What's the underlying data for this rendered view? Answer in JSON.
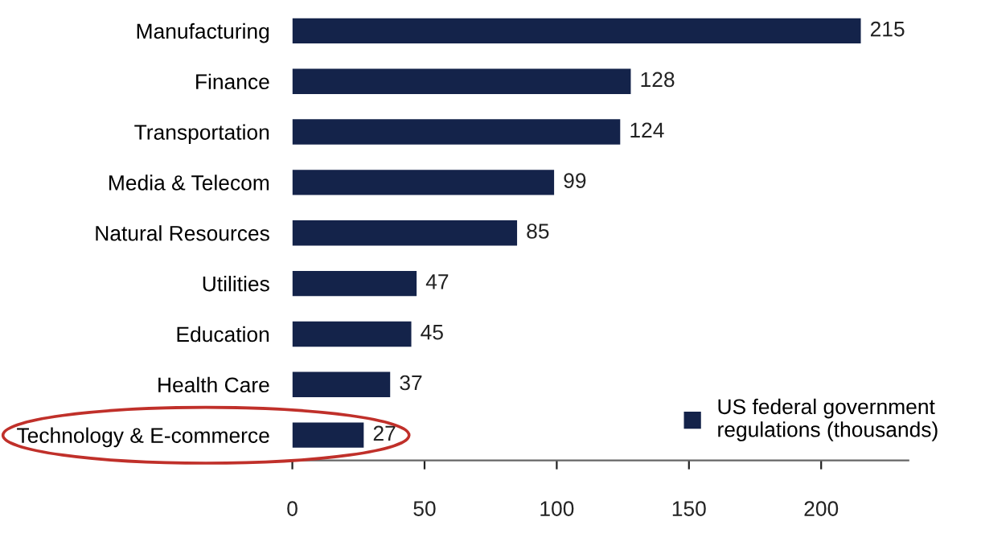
{
  "chart_data": {
    "type": "bar",
    "orientation": "horizontal",
    "categories": [
      "Manufacturing",
      "Finance",
      "Transportation",
      "Media & Telecom",
      "Natural Resources",
      "Utilities",
      "Education",
      "Health Care",
      "Technology & E-commerce"
    ],
    "series": [
      {
        "name": "US federal government regulations (thousands)",
        "color": "#14234a",
        "values": [
          215,
          128,
          124,
          99,
          85,
          47,
          45,
          37,
          27
        ]
      }
    ],
    "xlim": [
      0,
      233
    ],
    "xticks": [
      0,
      50,
      100,
      150,
      200
    ],
    "data_labels": true,
    "legend": "bottom right",
    "grid": false
  }
}
